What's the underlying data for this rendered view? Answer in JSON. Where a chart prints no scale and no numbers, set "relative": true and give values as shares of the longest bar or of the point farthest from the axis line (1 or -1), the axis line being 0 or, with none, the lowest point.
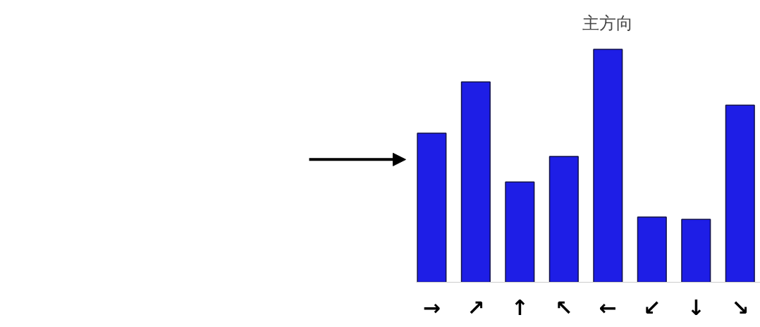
{
  "chart_data": {
    "type": "bar",
    "relative": true,
    "categories": [
      "→",
      "↗",
      "↑",
      "↖",
      "←",
      "↙",
      "↓",
      "↘"
    ],
    "values": [
      0.64,
      0.86,
      0.43,
      0.54,
      1,
      0.28,
      0.27,
      0.76
    ],
    "color": "#1e1ee6",
    "annotations": [
      "主方向"
    ]
  }
}
